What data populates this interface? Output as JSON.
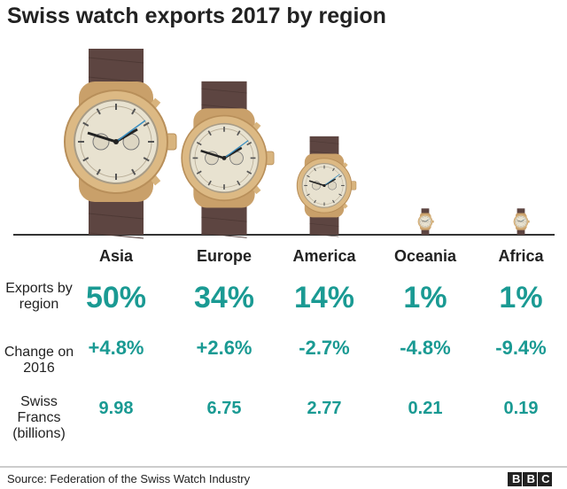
{
  "chart_data": {
    "type": "pictogram",
    "title": "Swiss watch exports 2017 by region",
    "categories": [
      "Asia",
      "Europe",
      "America",
      "Oceania",
      "Africa"
    ],
    "series": [
      {
        "name": "Exports by region",
        "values": [
          50,
          34,
          14,
          1,
          1
        ],
        "value_labels": [
          "50%",
          "34%",
          "14%",
          "1%",
          "1%"
        ],
        "color": "#1a9a93"
      },
      {
        "name": "Change on 2016",
        "values": [
          4.8,
          2.6,
          -2.7,
          -4.8,
          -9.4
        ],
        "value_labels": [
          "+4.8%",
          "+2.6%",
          "-2.7%",
          "-4.8%",
          "-9.4%"
        ],
        "color": "#1a9a93"
      },
      {
        "name": "Swiss Francs (billions)",
        "values": [
          9.98,
          6.75,
          2.77,
          0.21,
          0.19
        ],
        "color": "#1a9a93"
      }
    ],
    "source": "Source: Federation of the Swiss Watch Industry",
    "logo": "BBC"
  }
}
